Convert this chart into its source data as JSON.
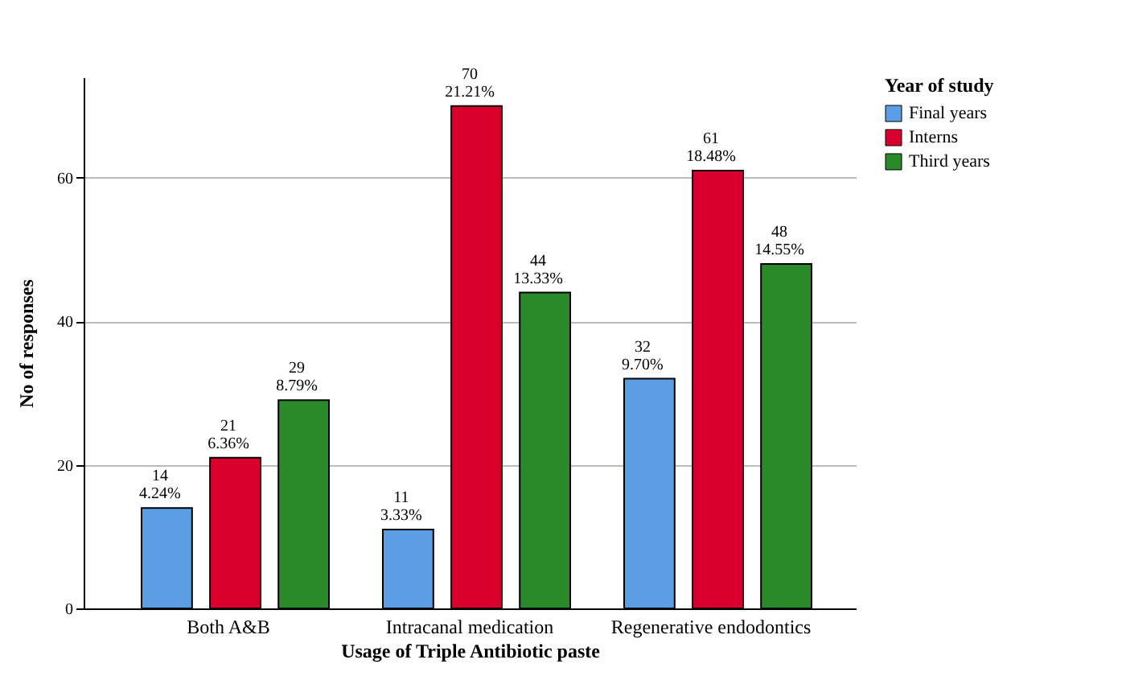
{
  "chart_data": {
    "type": "bar",
    "xlabel": "Usage of Triple Antibiotic paste",
    "ylabel": "No of responses",
    "legend_title": "Year of study",
    "legend": "top right",
    "grid": "y",
    "categories": [
      "Both A&B",
      "Intracanal medication",
      "Regenerative endodontics"
    ],
    "ylim": [
      0,
      74
    ],
    "yticks": [
      0,
      20,
      40,
      60
    ],
    "series": [
      {
        "name": "Final years",
        "color": "#5b9ee6",
        "values": [
          14,
          11,
          32
        ],
        "value_labels": [
          "14\n4.24%",
          "11\n3.33%",
          "32\n9.70%"
        ]
      },
      {
        "name": "Interns",
        "color": "#d9002e",
        "values": [
          21,
          70,
          61
        ],
        "value_labels": [
          "21\n6.36%",
          "70\n21.21%",
          "61\n18.48%"
        ]
      },
      {
        "name": "Third years",
        "color": "#2a8a2a",
        "values": [
          29,
          44,
          48
        ],
        "value_labels": [
          "29\n8.79%",
          "44\n13.33%",
          "48\n14.55%"
        ]
      }
    ]
  }
}
